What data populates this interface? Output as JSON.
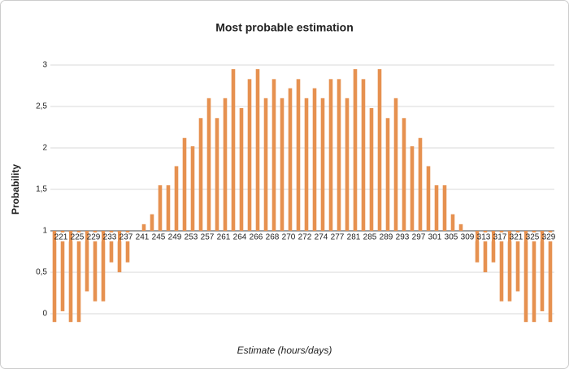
{
  "chart_data": {
    "type": "bar",
    "title": "Most probable estimation",
    "x_label": "Estimate (hours/days)",
    "y_label": "Probability",
    "categories": [
      null,
      "221",
      null,
      "225",
      null,
      "229",
      null,
      "233",
      null,
      "237",
      null,
      "241",
      null,
      "245",
      null,
      "249",
      null,
      "253",
      null,
      "257",
      null,
      "261",
      null,
      "264",
      null,
      "266",
      null,
      "268",
      null,
      "270",
      null,
      "272",
      null,
      "274",
      null,
      "277",
      null,
      "281",
      null,
      "285",
      null,
      "289",
      null,
      "293",
      null,
      "297",
      null,
      "301",
      null,
      "305",
      null,
      "309",
      null,
      "313",
      null,
      "317",
      null,
      "321",
      null,
      "325",
      null,
      "329"
    ],
    "values": [
      -0.1,
      0.03,
      -0.1,
      -0.1,
      0.27,
      0.15,
      0.15,
      0.62,
      0.5,
      0.62,
      1,
      1.08,
      1.2,
      1.55,
      1.55,
      1.78,
      2.12,
      2.02,
      2.36,
      2.6,
      2.36,
      2.6,
      2.95,
      2.48,
      2.83,
      2.95,
      2.6,
      2.83,
      2.6,
      2.72,
      2.83,
      2.6,
      2.72,
      2.6,
      2.83,
      2.83,
      2.6,
      2.95,
      2.83,
      2.48,
      2.95,
      2.36,
      2.6,
      2.36,
      2.02,
      2.12,
      1.78,
      1.55,
      1.55,
      1.2,
      1.08,
      1,
      0.62,
      0.5,
      0.62,
      0.15,
      0.15,
      0.27,
      -0.1,
      -0.1,
      0.03,
      -0.1
    ],
    "color": "#e69150",
    "baseline": 1,
    "ylim": [
      0,
      3
    ],
    "yticks": [
      0,
      {
        "value": 0.5,
        "label": "0,5"
      },
      1,
      {
        "value": 1.5,
        "label": "1,5"
      },
      2,
      {
        "value": 2.5,
        "label": "2,5"
      },
      3
    ],
    "grid": true
  }
}
